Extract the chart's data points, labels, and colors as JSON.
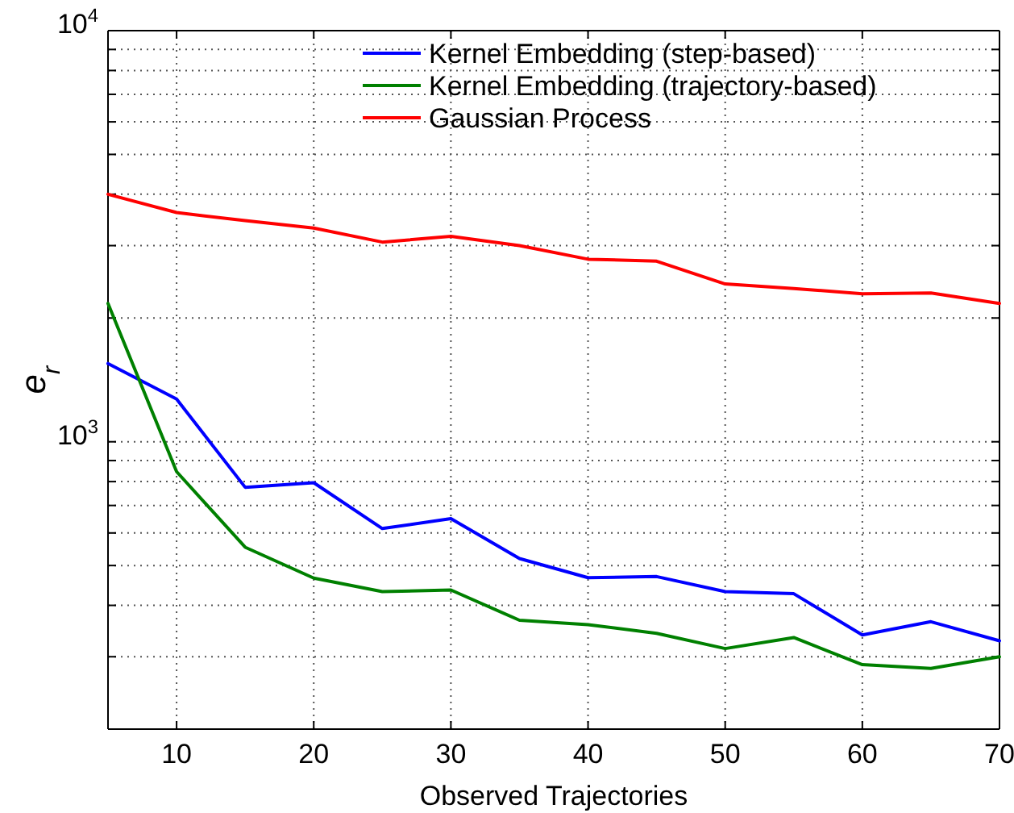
{
  "chart_data": {
    "type": "line",
    "xlabel": "Observed Trajectories",
    "ylabel": "e$_{r}$",
    "x": [
      5,
      10,
      15,
      20,
      25,
      30,
      35,
      40,
      45,
      50,
      55,
      60,
      65,
      70
    ],
    "series": [
      {
        "name": "Kernel Embedding (step-based)",
        "color": "#0000ff",
        "values": [
          1550,
          1270,
          775,
          795,
          615,
          650,
          520,
          467,
          470,
          432,
          427,
          339,
          365,
          328
        ]
      },
      {
        "name": "Kernel Embedding (trajectory-based)",
        "color": "#008000",
        "values": [
          2170,
          846,
          554,
          466,
          432,
          436,
          368,
          359,
          342,
          314,
          334,
          287,
          281,
          300
        ]
      },
      {
        "name": "Gaussian Process",
        "color": "#ff0000",
        "values": [
          4000,
          3610,
          3450,
          3310,
          3060,
          3160,
          3000,
          2780,
          2750,
          2420,
          2360,
          2290,
          2300,
          2170
        ]
      }
    ],
    "log": "y",
    "xlim": [
      5,
      70
    ],
    "xticks": [
      10,
      20,
      30,
      40,
      50,
      60,
      70
    ],
    "ylim": [
      200,
      10000
    ],
    "yticks": [
      {
        "value": 200,
        "label": null
      },
      {
        "value": 300,
        "label": null
      },
      {
        "value": 400,
        "label": null
      },
      {
        "value": 500,
        "label": null
      },
      {
        "value": 600,
        "label": null
      },
      {
        "value": 700,
        "label": null
      },
      {
        "value": 800,
        "label": null
      },
      {
        "value": 900,
        "label": null
      },
      {
        "value": 1000,
        "label": "10$^{3}$"
      },
      {
        "value": 2000,
        "label": null
      },
      {
        "value": 3000,
        "label": null
      },
      {
        "value": 4000,
        "label": null
      },
      {
        "value": 5000,
        "label": null
      },
      {
        "value": 6000,
        "label": null
      },
      {
        "value": 7000,
        "label": null
      },
      {
        "value": 8000,
        "label": null
      },
      {
        "value": 9000,
        "label": null
      },
      {
        "value": 10000,
        "label": "10$^{4}$"
      }
    ],
    "grid": true,
    "legend": "top right",
    "line_style": "solid",
    "marker": "none"
  }
}
